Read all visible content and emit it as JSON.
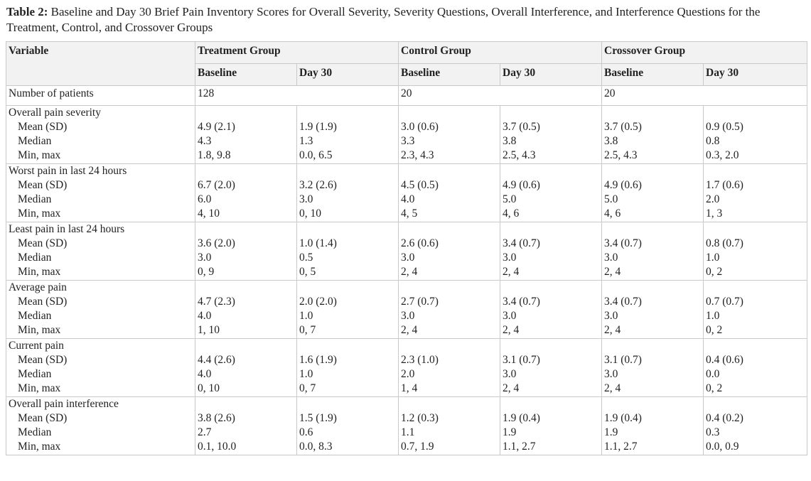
{
  "caption": {
    "label": "Table 2:",
    "text": "Baseline and Day 30 Brief Pain Inventory Scores for Overall Severity, Severity Questions, Overall Interference, and Interference Questions for the Treatment, Control, and Crossover Groups"
  },
  "header": {
    "variable": "Variable",
    "groups": [
      "Treatment Group",
      "Control Group",
      "Crossover Group"
    ],
    "subcols": [
      "Baseline",
      "Day 30",
      "Baseline",
      "Day 30",
      "Baseline",
      "Day 30"
    ]
  },
  "patients": {
    "label": "Number of patients",
    "values": [
      "128",
      "20",
      "20"
    ]
  },
  "sections": [
    {
      "title": "Overall pain severity",
      "stats": [
        "Mean (SD)",
        "Median",
        "Min, max"
      ],
      "cols": [
        [
          "4.9 (2.1)",
          "4.3",
          "1.8, 9.8"
        ],
        [
          "1.9 (1.9)",
          "1.3",
          "0.0, 6.5"
        ],
        [
          "3.0 (0.6)",
          "3.3",
          "2.3, 4.3"
        ],
        [
          "3.7 (0.5)",
          "3.8",
          "2.5, 4.3"
        ],
        [
          "3.7 (0.5)",
          "3.8",
          "2.5, 4.3"
        ],
        [
          "0.9 (0.5)",
          "0.8",
          "0.3, 2.0"
        ]
      ]
    },
    {
      "title": "Worst pain in last 24 hours",
      "stats": [
        "Mean (SD)",
        "Median",
        "Min, max"
      ],
      "cols": [
        [
          "6.7 (2.0)",
          "6.0",
          "4, 10"
        ],
        [
          "3.2 (2.6)",
          "3.0",
          "0, 10"
        ],
        [
          "4.5 (0.5)",
          "4.0",
          "4, 5"
        ],
        [
          "4.9 (0.6)",
          "5.0",
          "4, 6"
        ],
        [
          "4.9 (0.6)",
          "5.0",
          "4, 6"
        ],
        [
          "1.7 (0.6)",
          "2.0",
          "1, 3"
        ]
      ]
    },
    {
      "title": "Least pain in last 24 hours",
      "stats": [
        "Mean (SD)",
        "Median",
        "Min, max"
      ],
      "cols": [
        [
          "3.6 (2.0)",
          "3.0",
          "0, 9"
        ],
        [
          "1.0 (1.4)",
          "0.5",
          "0, 5"
        ],
        [
          "2.6 (0.6)",
          "3.0",
          "2, 4"
        ],
        [
          "3.4 (0.7)",
          "3.0",
          "2, 4"
        ],
        [
          "3.4 (0.7)",
          "3.0",
          "2, 4"
        ],
        [
          "0.8 (0.7)",
          "1.0",
          "0, 2"
        ]
      ]
    },
    {
      "title": "Average pain",
      "stats": [
        "Mean (SD)",
        "Median",
        "Min, max"
      ],
      "cols": [
        [
          "4.7 (2.3)",
          "4.0",
          "1, 10"
        ],
        [
          "2.0 (2.0)",
          "1.0",
          "0, 7"
        ],
        [
          "2.7 (0.7)",
          "3.0",
          "2, 4"
        ],
        [
          "3.4 (0.7)",
          "3.0",
          "2, 4"
        ],
        [
          "3.4 (0.7)",
          "3.0",
          "2, 4"
        ],
        [
          "0.7 (0.7)",
          "1.0",
          "0, 2"
        ]
      ]
    },
    {
      "title": "Current pain",
      "stats": [
        "Mean (SD)",
        "Median",
        "Min, max"
      ],
      "cols": [
        [
          "4.4 (2.6)",
          "4.0",
          "0, 10"
        ],
        [
          "1.6 (1.9)",
          "1.0",
          "0, 7"
        ],
        [
          "2.3 (1.0)",
          "2.0",
          "1, 4"
        ],
        [
          "3.1 (0.7)",
          "3.0",
          "2, 4"
        ],
        [
          "3.1 (0.7)",
          "3.0",
          "2, 4"
        ],
        [
          "0.4 (0.6)",
          "0.0",
          "0, 2"
        ]
      ]
    },
    {
      "title": "Overall pain interference",
      "stats": [
        "Mean (SD)",
        "Median",
        "Min, max"
      ],
      "cols": [
        [
          "3.8 (2.6)",
          "2.7",
          "0.1, 10.0"
        ],
        [
          "1.5 (1.9)",
          "0.6",
          "0.0, 8.3"
        ],
        [
          "1.2 (0.3)",
          "1.1",
          "0.7, 1.9"
        ],
        [
          "1.9 (0.4)",
          "1.9",
          "1.1, 2.7"
        ],
        [
          "1.9 (0.4)",
          "1.9",
          "1.1, 2.7"
        ],
        [
          "0.4 (0.2)",
          "0.3",
          "0.0, 0.9"
        ]
      ]
    }
  ]
}
